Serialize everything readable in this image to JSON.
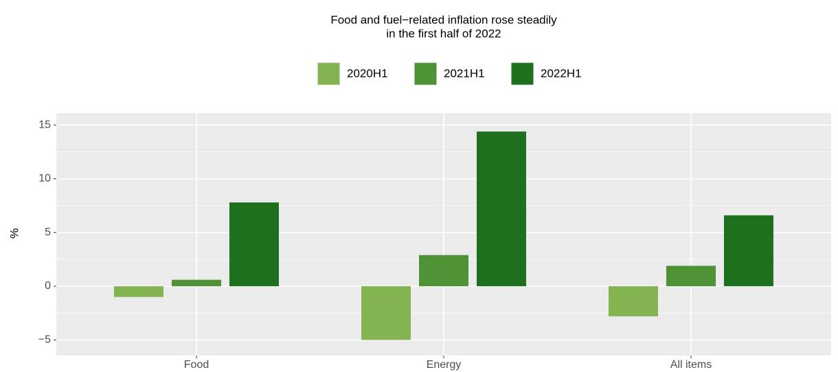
{
  "chart_data": {
    "type": "bar",
    "title": [
      "Food and fuel−related inflation rose steadily",
      "in the first half of 2022"
    ],
    "y_label": "%",
    "categories": [
      "Food",
      "Energy",
      "All items"
    ],
    "series": [
      {
        "name": "2020H1",
        "color": "#84b451",
        "values": [
          -1.0,
          -5.0,
          -2.8
        ]
      },
      {
        "name": "2021H1",
        "color": "#4f9236",
        "values": [
          0.6,
          2.9,
          1.9
        ]
      },
      {
        "name": "2022H1",
        "color": "#1e701e",
        "values": [
          7.8,
          14.4,
          6.6
        ]
      }
    ],
    "ylim": [
      -6.45,
      16.1
    ],
    "yticks": [
      {
        "value": -5,
        "label": "−5"
      },
      0,
      5,
      10,
      15
    ],
    "grid": true,
    "legend_position": "top"
  }
}
